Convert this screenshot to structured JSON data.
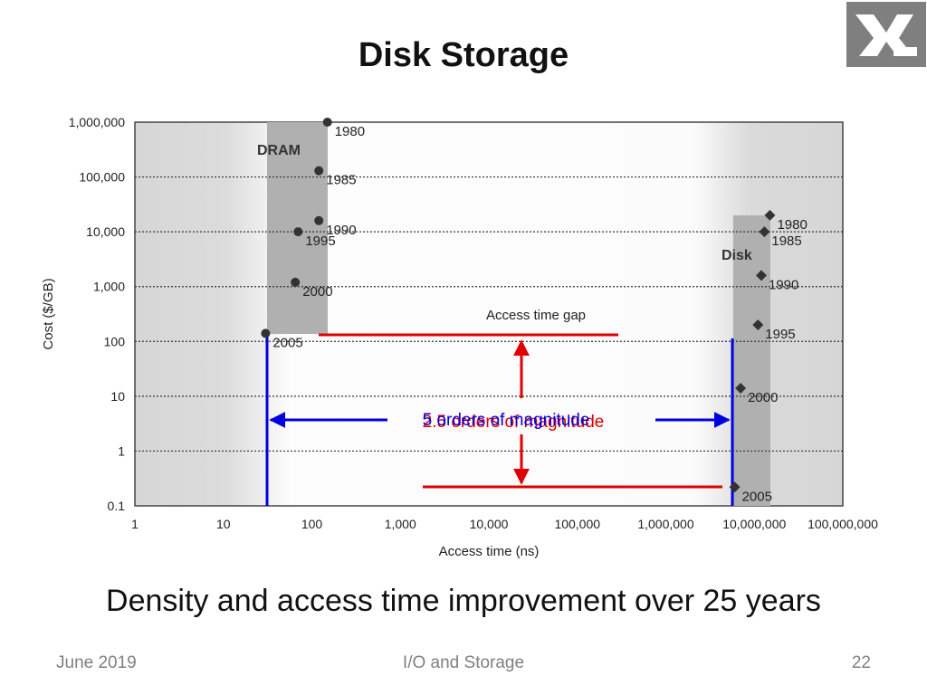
{
  "slide": {
    "title": "Disk Storage",
    "caption": "Density and access time improvement over 25 years",
    "footer_date": "June 2019",
    "footer_topic": "I/O and Storage",
    "page_number": "22",
    "logo_icon": "logo-icon"
  },
  "chart_data": {
    "type": "scatter",
    "xlabel": "Access time (ns)",
    "ylabel": "Cost ($/GB)",
    "x_scale": "log",
    "y_scale": "log",
    "xlim": [
      1,
      100000000
    ],
    "ylim": [
      0.1,
      1000000
    ],
    "x_ticks": [
      "1",
      "10",
      "100",
      "1,000",
      "10,000",
      "100,000",
      "1,000,000",
      "10,000,000",
      "100,000,000"
    ],
    "y_ticks": [
      "1,000,000",
      "100,000",
      "10,000",
      "1,000",
      "100",
      "10",
      "1",
      "0.1"
    ],
    "grid": "horizontal dotted",
    "series": [
      {
        "name": "DRAM",
        "marker": "circle",
        "points": [
          {
            "x": 150,
            "y": 1000000,
            "label": "1980"
          },
          {
            "x": 120,
            "y": 130000,
            "label": "1985"
          },
          {
            "x": 120,
            "y": 16000,
            "label": "1990"
          },
          {
            "x": 70,
            "y": 10000,
            "label": "1995"
          },
          {
            "x": 65,
            "y": 1200,
            "label": "2000"
          },
          {
            "x": 30,
            "y": 140,
            "label": "2005"
          }
        ]
      },
      {
        "name": "Disk",
        "marker": "diamond",
        "points": [
          {
            "x": 15000000,
            "y": 20000,
            "label": "1980"
          },
          {
            "x": 13000000,
            "y": 10000,
            "label": "1985"
          },
          {
            "x": 12000000,
            "y": 1600,
            "label": "1990"
          },
          {
            "x": 11000000,
            "y": 200,
            "label": "1995"
          },
          {
            "x": 7000000,
            "y": 14,
            "label": "2000"
          },
          {
            "x": 6000000,
            "y": 0.22,
            "label": "2005"
          }
        ]
      }
    ],
    "annotations": {
      "gap_title": "Access time gap",
      "cost_gap_label": "2.5 orders of magnitude",
      "time_gap_label": "5 orders of magnitude"
    },
    "colors": {
      "cost_gap": "#e00000",
      "time_gap": "#0000e0",
      "band": "#b0b0b0",
      "marker": "#333333"
    }
  }
}
